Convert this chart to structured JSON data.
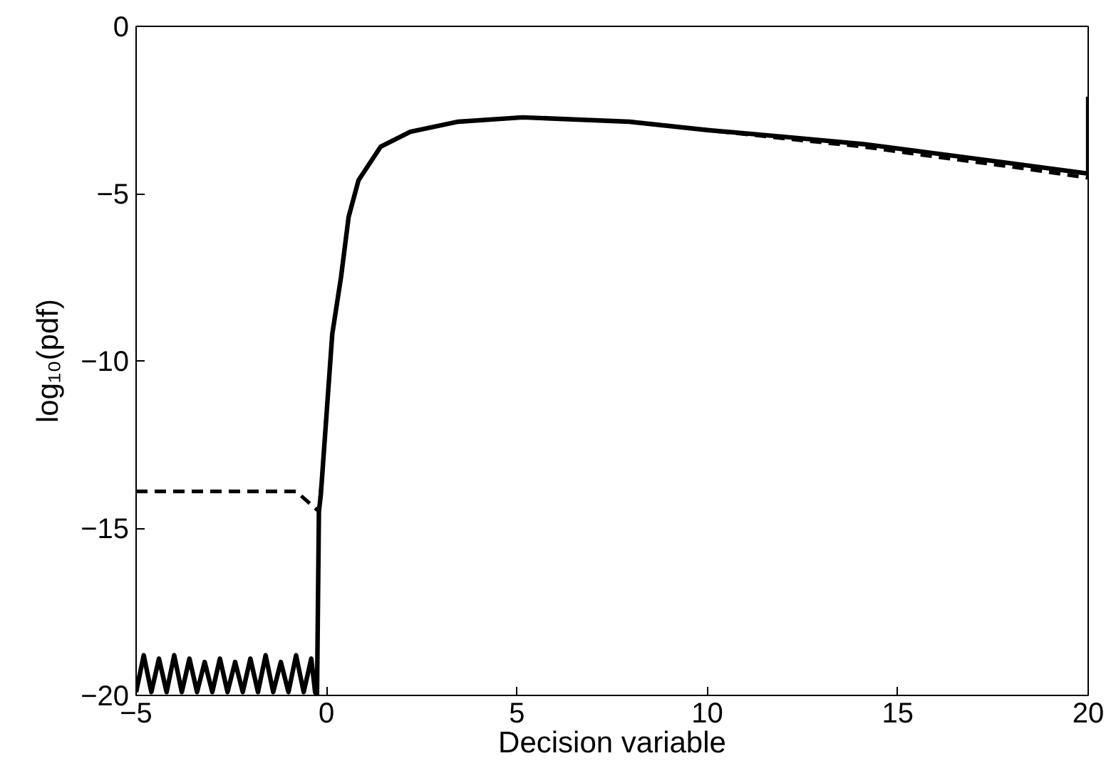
{
  "chart_data": {
    "type": "line",
    "xlabel": "Decision variable",
    "ylabel": "log₁₀(pdf)",
    "xlim": [
      -5,
      20
    ],
    "ylim": [
      -20,
      0
    ],
    "xticks": [
      -5,
      0,
      5,
      10,
      15,
      20
    ],
    "yticks": [
      -20,
      -15,
      -10,
      -5,
      0
    ],
    "grid": false,
    "series": [
      {
        "color": "#000000",
        "line_style": "solid",
        "x": [
          -5,
          -4.8,
          -4.6,
          -4.4,
          -4.2,
          -4.0,
          -3.8,
          -3.6,
          -3.4,
          -3.2,
          -3.0,
          -2.8,
          -2.6,
          -2.4,
          -2.2,
          -2.0,
          -1.8,
          -1.6,
          -1.4,
          -1.2,
          -1.0,
          -0.8,
          -0.6,
          -0.4,
          -0.3,
          -0.25,
          -0.2,
          -0.15,
          -0.1,
          0.15,
          0.38,
          0.58,
          0.84,
          1.42,
          2.2,
          3.46,
          5.15,
          7.95,
          10,
          12,
          14.1,
          16,
          18,
          20,
          20
        ],
        "values": [
          -19.9,
          -18.8,
          -19.9,
          -18.9,
          -19.9,
          -18.8,
          -19.9,
          -18.9,
          -19.9,
          -19.0,
          -19.9,
          -18.9,
          -19.9,
          -19.0,
          -19.9,
          -18.9,
          -19.9,
          -18.8,
          -19.9,
          -19.0,
          -19.9,
          -18.8,
          -19.9,
          -18.9,
          -19.9,
          -20,
          -14.5,
          -14.0,
          -13.2,
          -9.2,
          -7.5,
          -5.7,
          -4.6,
          -3.6,
          -3.15,
          -2.85,
          -2.72,
          -2.85,
          -3.1,
          -3.3,
          -3.52,
          -3.8,
          -4.1,
          -4.4,
          -2.1
        ]
      },
      {
        "color": "#000000",
        "line_style": "dashed",
        "x": [
          -5,
          -0.8,
          -0.2,
          -0.1,
          0.15,
          0.38,
          0.58,
          0.84,
          1.42,
          2.2,
          3.46,
          5.15,
          7.95,
          10,
          12,
          14.1,
          16,
          18,
          20
        ],
        "values": [
          -13.9,
          -13.9,
          -14.5,
          -13.2,
          -9.2,
          -7.5,
          -5.7,
          -4.6,
          -3.6,
          -3.15,
          -2.85,
          -2.72,
          -2.85,
          -3.1,
          -3.35,
          -3.6,
          -3.9,
          -4.2,
          -4.53
        ]
      }
    ]
  }
}
